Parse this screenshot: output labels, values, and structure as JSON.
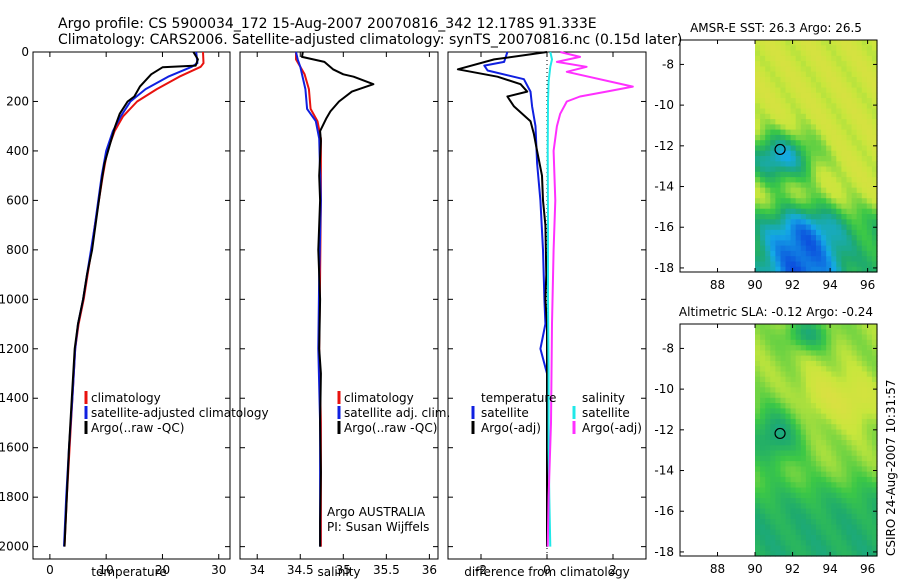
{
  "header": {
    "line1": "Argo profile: CS 5900034_172 15-Aug-2007 20070816_342 12.178S 91.333E",
    "line2": "Climatology: CARS2006. Satellite-adjusted climatology: synTS_20070816.nc (0.15d later)"
  },
  "footer": {
    "stamp": "CSIRO 24-Aug-2007 10:31:57"
  },
  "colors": {
    "climatology": "#e8120e",
    "satellite": "#1020e0",
    "argo": "#000000",
    "salinity_satellite": "#20e8e8",
    "salinity_argo": "#ff30ff"
  },
  "chart_data": [
    {
      "id": "temperature",
      "type": "line",
      "xlabel": "temperature",
      "xlim": [
        -3,
        32
      ],
      "ylim": [
        2050,
        0
      ],
      "xticks": [
        "0",
        "10",
        "20",
        "30"
      ],
      "xtick_values": [
        0,
        10,
        20,
        30
      ],
      "yticks": [
        "0",
        "200",
        "400",
        "600",
        "800",
        "1000",
        "1200",
        "1400",
        "1600",
        "1800",
        "2000"
      ],
      "ytick_values": [
        0,
        200,
        400,
        600,
        800,
        1000,
        1200,
        1400,
        1600,
        1800,
        2000
      ],
      "legend": [
        "climatology",
        "satellite-adjusted climatology",
        "Argo(..raw -QC)"
      ],
      "series": [
        {
          "name": "climatology",
          "color": "#e8120e",
          "points": [
            [
              27.2,
              0
            ],
            [
              27.3,
              45
            ],
            [
              26.8,
              60
            ],
            [
              23,
              100
            ],
            [
              19,
              150
            ],
            [
              15.5,
              200
            ],
            [
              13,
              260
            ],
            [
              11.5,
              320
            ],
            [
              10.2,
              400
            ],
            [
              9.4,
              500
            ],
            [
              8.7,
              600
            ],
            [
              8.0,
              700
            ],
            [
              7.4,
              800
            ],
            [
              6.7,
              900
            ],
            [
              6.0,
              1000
            ],
            [
              5.1,
              1100
            ],
            [
              4.5,
              1200
            ],
            [
              4.0,
              1400
            ],
            [
              3.5,
              1600
            ],
            [
              3.0,
              1800
            ],
            [
              2.6,
              2000
            ]
          ]
        },
        {
          "name": "satellite-adjusted climatology",
          "color": "#1020e0",
          "points": [
            [
              26.0,
              0
            ],
            [
              26.2,
              45
            ],
            [
              25.2,
              60
            ],
            [
              21,
              100
            ],
            [
              17,
              150
            ],
            [
              14.3,
              200
            ],
            [
              12.6,
              260
            ],
            [
              11.2,
              320
            ],
            [
              10.0,
              400
            ],
            [
              9.2,
              500
            ],
            [
              8.6,
              600
            ],
            [
              8.0,
              700
            ],
            [
              7.3,
              800
            ],
            [
              6.6,
              900
            ],
            [
              5.9,
              1000
            ],
            [
              5.0,
              1100
            ],
            [
              4.5,
              1200
            ],
            [
              4.0,
              1400
            ],
            [
              3.4,
              1600
            ],
            [
              2.9,
              1800
            ],
            [
              2.5,
              2000
            ]
          ]
        },
        {
          "name": "Argo(..raw -QC)",
          "color": "#000000",
          "points": [
            [
              25.5,
              0
            ],
            [
              26.3,
              30
            ],
            [
              25.9,
              55
            ],
            [
              20,
              62
            ],
            [
              18,
              90
            ],
            [
              16,
              140
            ],
            [
              15,
              180
            ],
            [
              13.8,
              200
            ],
            [
              12.4,
              250
            ],
            [
              11.6,
              300
            ],
            [
              10.6,
              380
            ],
            [
              9.7,
              450
            ],
            [
              9.2,
              520
            ],
            [
              8.7,
              600
            ],
            [
              8.1,
              700
            ],
            [
              7.5,
              800
            ],
            [
              6.6,
              900
            ],
            [
              5.9,
              1000
            ],
            [
              5.0,
              1100
            ],
            [
              4.4,
              1200
            ],
            [
              3.9,
              1400
            ],
            [
              3.4,
              1600
            ],
            [
              3.0,
              1800
            ],
            [
              2.6,
              2000
            ]
          ]
        }
      ]
    },
    {
      "id": "salinity",
      "type": "line",
      "xlabel": "salinity",
      "xlim": [
        33.8,
        36.1
      ],
      "ylim": [
        2050,
        0
      ],
      "xticks": [
        "34",
        "34.5",
        "35",
        "35.5",
        "36"
      ],
      "xtick_values": [
        34,
        34.5,
        35,
        35.5,
        36
      ],
      "legend": [
        "climatology",
        "satellite adj. clim.",
        "Argo(..raw -QC)"
      ],
      "annotations": [
        "Argo AUSTRALIA",
        "PI: Susan Wijffels"
      ],
      "series": [
        {
          "name": "climatology",
          "color": "#e8120e",
          "points": [
            [
              34.45,
              0
            ],
            [
              34.45,
              30
            ],
            [
              34.5,
              60
            ],
            [
              34.55,
              90
            ],
            [
              34.6,
              150
            ],
            [
              34.62,
              230
            ],
            [
              34.7,
              280
            ],
            [
              34.74,
              350
            ],
            [
              34.74,
              600
            ],
            [
              34.73,
              900
            ],
            [
              34.72,
              1200
            ],
            [
              34.74,
              1500
            ],
            [
              34.74,
              1800
            ],
            [
              34.74,
              2000
            ]
          ]
        },
        {
          "name": "satellite adj. clim.",
          "color": "#1020e0",
          "points": [
            [
              34.45,
              0
            ],
            [
              34.47,
              30
            ],
            [
              34.5,
              60
            ],
            [
              34.52,
              90
            ],
            [
              34.56,
              150
            ],
            [
              34.58,
              230
            ],
            [
              34.68,
              280
            ],
            [
              34.72,
              350
            ],
            [
              34.74,
              600
            ],
            [
              34.72,
              900
            ],
            [
              34.71,
              1200
            ],
            [
              34.73,
              1500
            ],
            [
              34.73,
              1800
            ],
            [
              34.73,
              2000
            ]
          ]
        },
        {
          "name": "Argo(..raw -QC)",
          "color": "#000000",
          "points": [
            [
              34.53,
              0
            ],
            [
              34.52,
              20
            ],
            [
              34.78,
              40
            ],
            [
              34.88,
              70
            ],
            [
              35.0,
              90
            ],
            [
              35.12,
              100
            ],
            [
              35.35,
              130
            ],
            [
              35.1,
              160
            ],
            [
              34.95,
              200
            ],
            [
              34.85,
              240
            ],
            [
              34.8,
              270
            ],
            [
              34.73,
              320
            ],
            [
              34.74,
              360
            ],
            [
              34.72,
              500
            ],
            [
              34.73,
              600
            ],
            [
              34.71,
              800
            ],
            [
              34.73,
              1000
            ],
            [
              34.72,
              1200
            ],
            [
              34.74,
              1300
            ],
            [
              34.73,
              1500
            ],
            [
              34.74,
              1700
            ],
            [
              34.73,
              1900
            ],
            [
              34.73,
              2000
            ]
          ]
        }
      ]
    },
    {
      "id": "difference",
      "type": "line",
      "xlabel": "difference from climatology",
      "xlim": [
        -3.0,
        3.0
      ],
      "ylim": [
        2050,
        0
      ],
      "xticks": [
        "-2",
        "0",
        "2"
      ],
      "xtick_values": [
        -2,
        0,
        2
      ],
      "legend_left_title": "temperature",
      "legend_right_title": "salinity",
      "legend": [
        "satellite",
        "Argo(-adj)",
        "satellite",
        "Argo(-adj)"
      ],
      "series": [
        {
          "name": "temperature satellite",
          "color": "#1020e0",
          "points": [
            [
              -1.2,
              0
            ],
            [
              -1.3,
              40
            ],
            [
              -1.9,
              55
            ],
            [
              -1.8,
              75
            ],
            [
              -0.7,
              110
            ],
            [
              -0.5,
              160
            ],
            [
              -0.45,
              220
            ],
            [
              -0.35,
              300
            ],
            [
              -0.3,
              450
            ],
            [
              -0.2,
              600
            ],
            [
              -0.12,
              800
            ],
            [
              -0.08,
              1000
            ],
            [
              -0.05,
              1100
            ],
            [
              -0.2,
              1200
            ],
            [
              0.0,
              1300
            ],
            [
              0.0,
              1600
            ],
            [
              0.0,
              1800
            ],
            [
              0.0,
              2000
            ]
          ]
        },
        {
          "name": "temperature Argo(-adj)",
          "color": "#000000",
          "points": [
            [
              0.0,
              0
            ],
            [
              -1.6,
              30
            ],
            [
              -2.7,
              70
            ],
            [
              -1.5,
              100
            ],
            [
              -0.8,
              130
            ],
            [
              -0.6,
              160
            ],
            [
              -1.2,
              180
            ],
            [
              -1.0,
              220
            ],
            [
              -0.5,
              280
            ],
            [
              -0.4,
              330
            ],
            [
              -0.3,
              400
            ],
            [
              -0.15,
              500
            ],
            [
              -0.12,
              600
            ],
            [
              -0.05,
              700
            ],
            [
              -0.02,
              900
            ],
            [
              -0.05,
              1000
            ],
            [
              0.0,
              1100
            ],
            [
              0.0,
              1300
            ],
            [
              0.0,
              1600
            ],
            [
              0.0,
              1900
            ],
            [
              0.0,
              2000
            ]
          ]
        },
        {
          "name": "salinity satellite",
          "color": "#20e8e8",
          "points": [
            [
              0.1,
              0
            ],
            [
              0.15,
              30
            ],
            [
              0.1,
              60
            ],
            [
              0.05,
              120
            ],
            [
              0.03,
              200
            ],
            [
              0.02,
              400
            ],
            [
              0.03,
              700
            ],
            [
              0.03,
              1000
            ],
            [
              0.05,
              1300
            ],
            [
              0.05,
              1600
            ],
            [
              0.07,
              1800
            ],
            [
              0.1,
              2000
            ]
          ]
        },
        {
          "name": "salinity Argo(-adj)",
          "color": "#ff30ff",
          "points": [
            [
              0.4,
              0
            ],
            [
              1.0,
              20
            ],
            [
              0.3,
              40
            ],
            [
              1.2,
              60
            ],
            [
              0.6,
              80
            ],
            [
              2.6,
              140
            ],
            [
              1.8,
              160
            ],
            [
              1.0,
              180
            ],
            [
              0.6,
              200
            ],
            [
              0.4,
              250
            ],
            [
              0.3,
              300
            ],
            [
              0.2,
              400
            ],
            [
              0.25,
              600
            ],
            [
              0.2,
              800
            ],
            [
              0.15,
              1100
            ],
            [
              0.12,
              1500
            ],
            [
              0.05,
              1800
            ],
            [
              0.02,
              2000
            ]
          ]
        }
      ]
    },
    {
      "id": "sst-map",
      "type": "heatmap",
      "title": "AMSR-E SST: 26.3 Argo: 26.5",
      "xlim": [
        86,
        96.5
      ],
      "ylim": [
        -18.2,
        -6.8
      ],
      "xticks": [
        "88",
        "90",
        "92",
        "94",
        "96"
      ],
      "xtick_values": [
        88,
        90,
        92,
        94,
        96
      ],
      "yticks": [
        "-8",
        "-10",
        "-12",
        "-14",
        "-16",
        "-18"
      ],
      "ytick_values": [
        -8,
        -10,
        -12,
        -14,
        -16,
        -18
      ],
      "data_extent_x": [
        90,
        96.5
      ],
      "marker": {
        "lon": 91.333,
        "lat": -12.178
      }
    },
    {
      "id": "sla-map",
      "type": "heatmap",
      "title": "Altimetric SLA: -0.12 Argo: -0.24",
      "xlim": [
        86,
        96.5
      ],
      "ylim": [
        -18.2,
        -6.8
      ],
      "xticks": [
        "88",
        "90",
        "92",
        "94",
        "96"
      ],
      "xtick_values": [
        88,
        90,
        92,
        94,
        96
      ],
      "yticks": [
        "-8",
        "-10",
        "-12",
        "-14",
        "-16",
        "-18"
      ],
      "ytick_values": [
        -8,
        -10,
        -12,
        -14,
        -16,
        -18
      ],
      "data_extent_x": [
        90,
        96.5
      ],
      "marker": {
        "lon": 91.333,
        "lat": -12.178
      }
    }
  ]
}
